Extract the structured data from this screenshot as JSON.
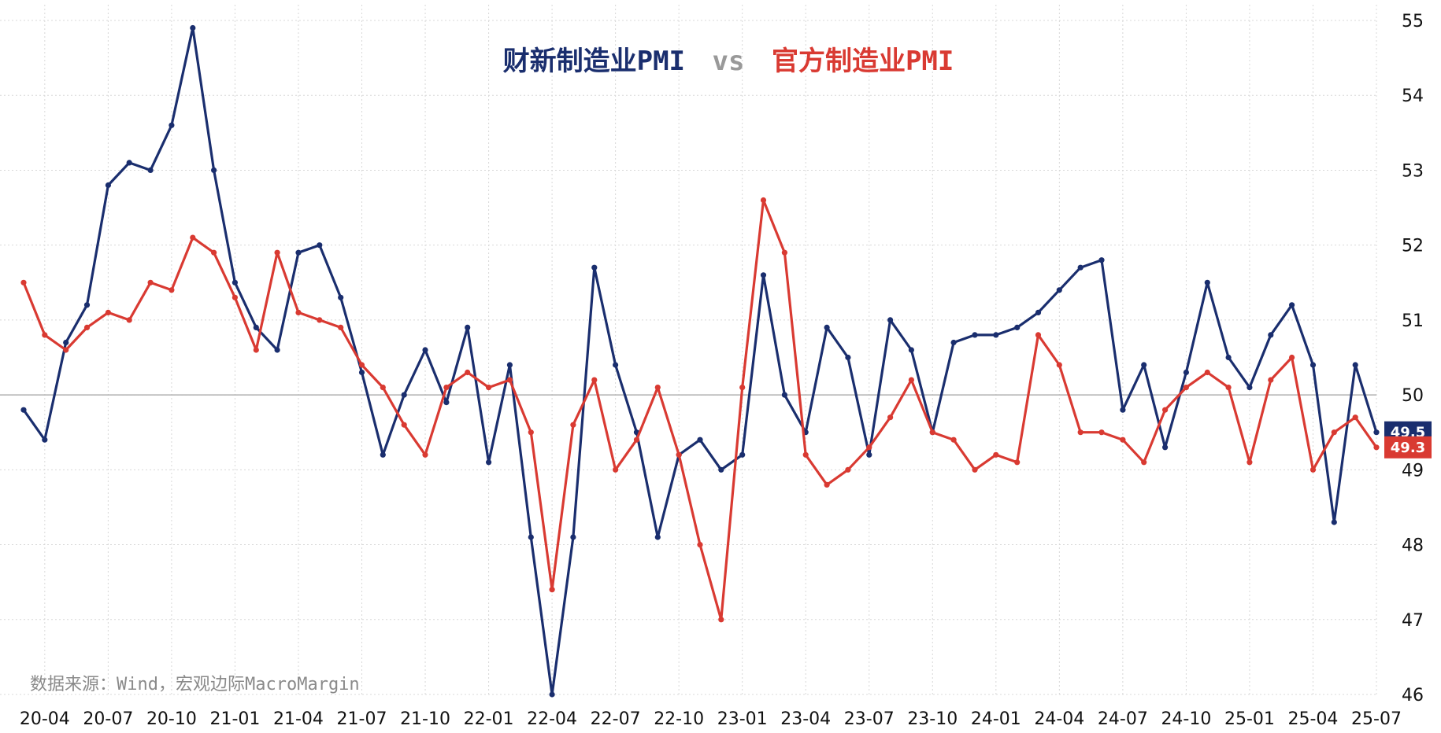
{
  "chart_data": {
    "type": "line",
    "title": {
      "series_a": "财新制造业PMI",
      "vs": "vs",
      "series_b": "官方制造业PMI"
    },
    "source": "数据来源：Wind，宏观边际MacroMargin",
    "x_tick_labels": [
      "20-04",
      "20-07",
      "20-10",
      "21-01",
      "21-04",
      "21-07",
      "21-10",
      "22-01",
      "22-04",
      "22-07",
      "22-10",
      "23-01",
      "23-04",
      "23-07",
      "23-10",
      "24-01",
      "24-04",
      "24-07",
      "24-10",
      "25-01",
      "25-04",
      "25-07"
    ],
    "y_tick_labels": [
      "46",
      "47",
      "48",
      "49",
      "50",
      "51",
      "52",
      "53",
      "54",
      "55"
    ],
    "ylim": [
      46,
      55
    ],
    "reference_line": 50,
    "grid": true,
    "y_axis_position": "right",
    "x_start": "2020-03",
    "x_end": "2025-07",
    "series": [
      {
        "name": "财新制造业PMI",
        "color": "#1a2e6e",
        "end_label": "49.5",
        "values": [
          49.8,
          49.4,
          50.7,
          51.2,
          52.8,
          53.1,
          53.0,
          53.6,
          54.9,
          53.0,
          51.5,
          50.9,
          50.6,
          51.9,
          52.0,
          51.3,
          50.3,
          49.2,
          50.0,
          50.6,
          49.9,
          50.9,
          49.1,
          50.4,
          48.1,
          46.0,
          48.1,
          51.7,
          50.4,
          49.5,
          48.1,
          49.2,
          49.4,
          49.0,
          49.2,
          51.6,
          50.0,
          49.5,
          50.9,
          50.5,
          49.2,
          51.0,
          50.6,
          49.5,
          50.7,
          50.8,
          50.8,
          50.9,
          51.1,
          51.4,
          51.7,
          51.8,
          49.8,
          50.4,
          49.3,
          50.3,
          51.5,
          50.5,
          50.1,
          50.8,
          51.2,
          50.4,
          48.3,
          50.4,
          49.5
        ]
      },
      {
        "name": "官方制造业PMI",
        "color": "#d93a32",
        "end_label": "49.3",
        "values": [
          51.5,
          50.8,
          50.6,
          50.9,
          51.1,
          51.0,
          51.5,
          51.4,
          52.1,
          51.9,
          51.3,
          50.6,
          51.9,
          51.1,
          51.0,
          50.9,
          50.4,
          50.1,
          49.6,
          49.2,
          50.1,
          50.3,
          50.1,
          50.2,
          49.5,
          47.4,
          49.6,
          50.2,
          49.0,
          49.4,
          50.1,
          49.2,
          48.0,
          47.0,
          50.1,
          52.6,
          51.9,
          49.2,
          48.8,
          49.0,
          49.3,
          49.7,
          50.2,
          49.5,
          49.4,
          49.0,
          49.2,
          49.1,
          50.8,
          50.4,
          49.5,
          49.5,
          49.4,
          49.1,
          49.8,
          50.1,
          50.3,
          50.1,
          49.1,
          50.2,
          50.5,
          49.0,
          49.5,
          49.7,
          49.3
        ]
      }
    ]
  }
}
